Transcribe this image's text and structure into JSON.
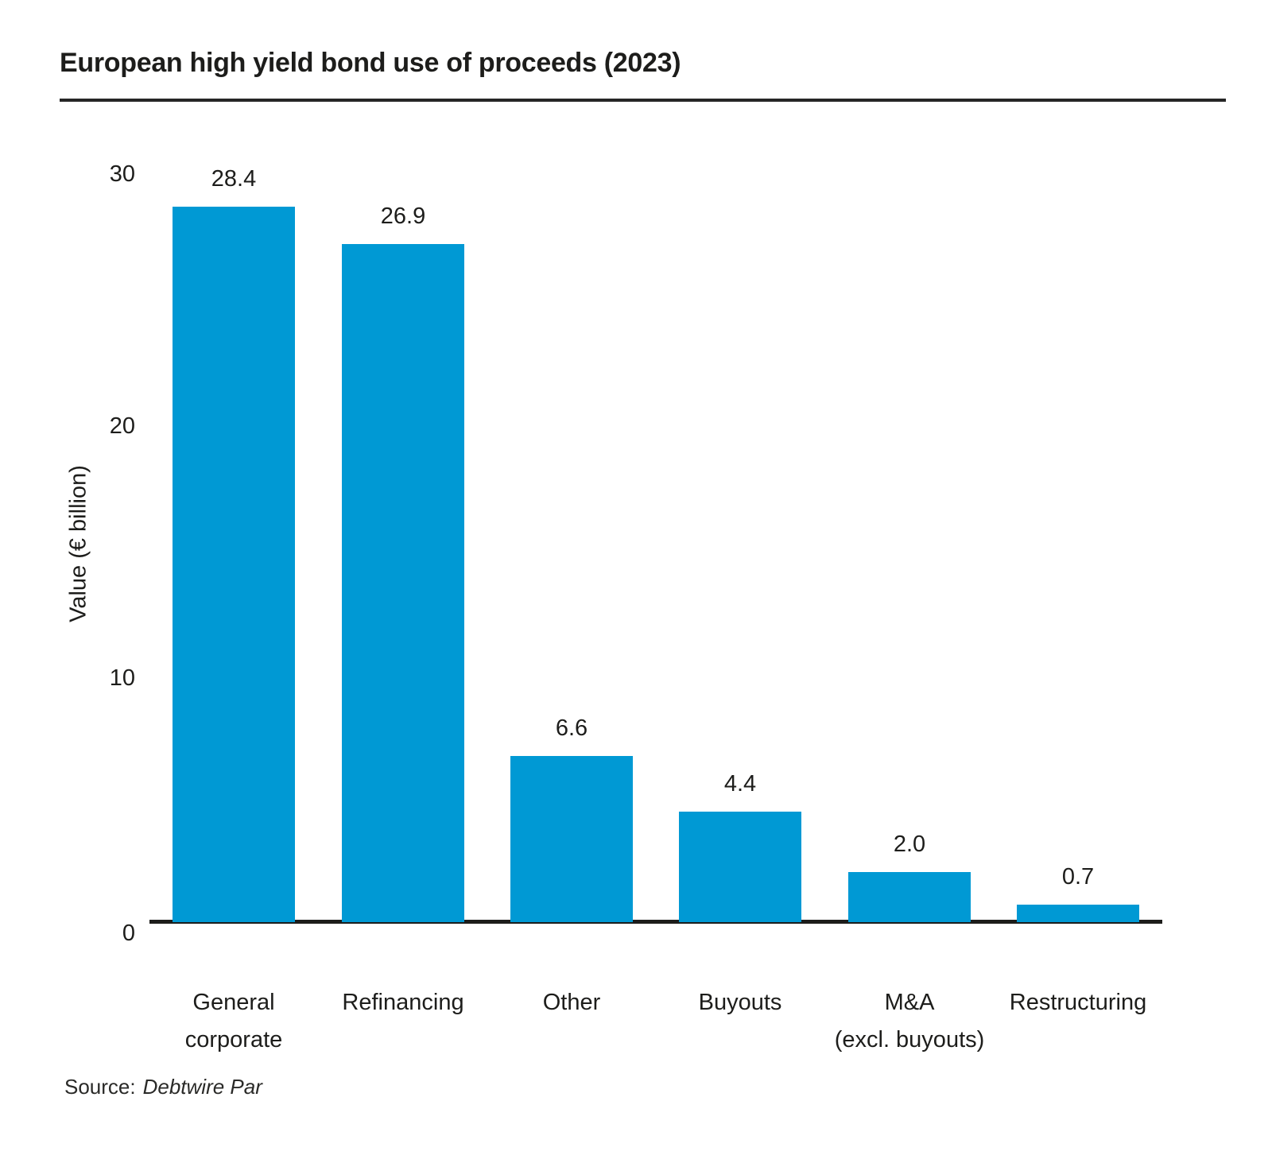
{
  "title": "European high yield bond use of proceeds (2023)",
  "source": {
    "prefix": "Source:",
    "name": "Debtwire Par"
  },
  "chart_data": {
    "type": "bar",
    "title": "European high yield bond use of proceeds (2023)",
    "categories": [
      "General\ncorporate",
      "Refinancing",
      "Other",
      "Buyouts",
      "M&A\n(excl. buyouts)",
      "Restructuring"
    ],
    "values": [
      28.4,
      26.9,
      6.6,
      4.4,
      2.0,
      0.7
    ],
    "value_labels": [
      "28.4",
      "26.9",
      "6.6",
      "4.4",
      "2.0",
      "0.7"
    ],
    "xlabel": "",
    "ylabel": "Value (€ billion)",
    "ylim": [
      0,
      30
    ],
    "yticks": [
      0,
      10,
      20,
      30
    ],
    "bar_color": "#0099d4",
    "axis_color": "#1d1d1b",
    "grid": false,
    "legend": "none"
  }
}
